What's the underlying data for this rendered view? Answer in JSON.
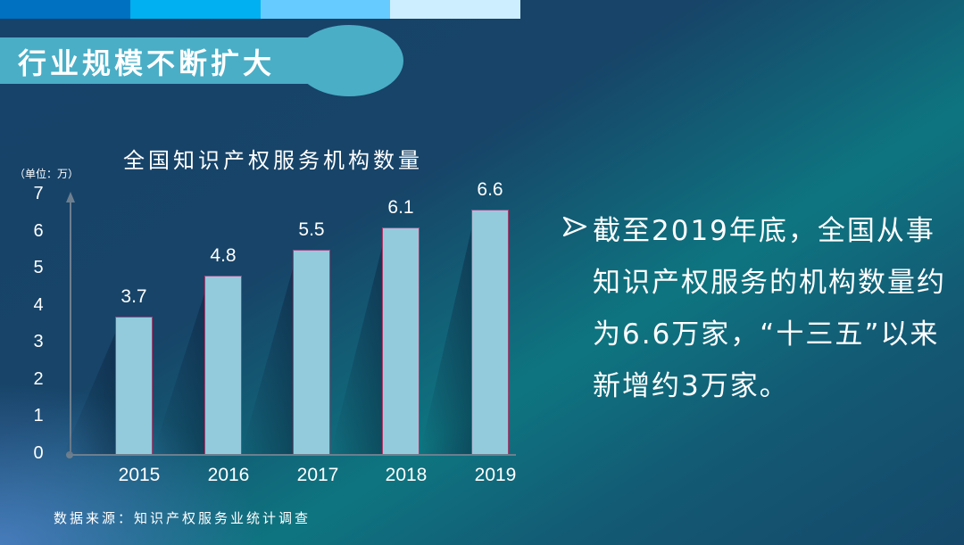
{
  "header": {
    "top_bar_colors": [
      "#0070c0",
      "#00b0f0",
      "#66ccff",
      "#cceeff"
    ],
    "title": "行业规模不断扩大",
    "banner_color": "#4aaec6"
  },
  "chart_data": {
    "type": "bar",
    "title": "全国知识产权服务机构数量",
    "unit_label": "（单位：万）",
    "xlabel": "",
    "ylabel": "万",
    "categories": [
      "2015",
      "2016",
      "2017",
      "2018",
      "2019"
    ],
    "values": [
      3.7,
      4.8,
      5.5,
      6.1,
      6.6
    ],
    "value_labels": [
      "3.7",
      "4.8",
      "5.5",
      "6.1",
      "6.6"
    ],
    "yticks": [
      "7",
      "6",
      "5",
      "4",
      "3",
      "2",
      "1",
      "0"
    ],
    "ylim": [
      0,
      7
    ],
    "grid": false,
    "legend": null,
    "bar_color": "#93cbdd"
  },
  "source": "数据来源：知识产权服务业统计调查",
  "bullet": {
    "icon": "arrowhead-bullet-icon",
    "text": "截至2019年底，全国从事知识产权服务的机构数量约为6.6万家，“十三五”以来新增约3万家。"
  }
}
